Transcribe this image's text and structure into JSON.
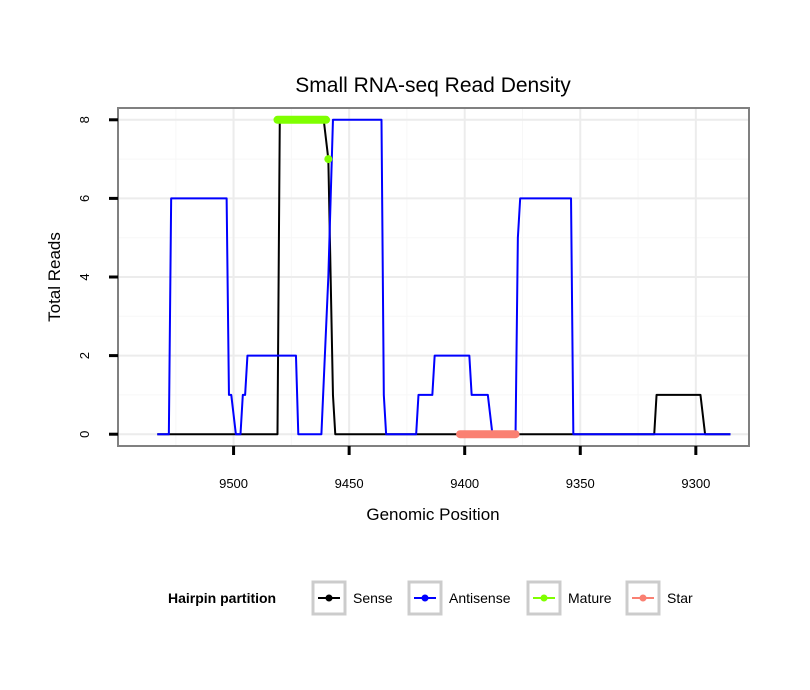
{
  "chart_data": {
    "type": "line",
    "title": "Small RNA-seq Read Density",
    "xlabel": "Genomic Position",
    "ylabel": "Total Reads",
    "xlim": [
      9550,
      9277
    ],
    "ylim": [
      -0.3,
      8.3
    ],
    "x_reversed": true,
    "grid": true,
    "x_ticks": [
      9500,
      9450,
      9400,
      9350,
      9300
    ],
    "x_tick_labels": [
      "9500",
      "9450",
      "9400",
      "9350",
      "9300"
    ],
    "y_ticks": [
      0,
      2,
      4,
      6,
      8
    ],
    "y_tick_labels": [
      "0",
      "2",
      "4",
      "6",
      "8"
    ],
    "legend": {
      "title": "Hairpin partition",
      "position": "bottom",
      "entries": [
        "Sense",
        "Antisense",
        "Mature",
        "Star"
      ]
    },
    "series": [
      {
        "name": "Sense",
        "color": "#000000",
        "style": "line",
        "points": [
          [
            9533,
            0
          ],
          [
            9481,
            0
          ],
          [
            9480,
            8
          ],
          [
            9461,
            8
          ],
          [
            9459,
            7
          ],
          [
            9458,
            4
          ],
          [
            9457,
            1
          ],
          [
            9456,
            0
          ],
          [
            9318,
            0
          ],
          [
            9317,
            1
          ],
          [
            9298,
            1
          ],
          [
            9296,
            0
          ],
          [
            9285,
            0
          ]
        ]
      },
      {
        "name": "Antisense",
        "color": "#0000ff",
        "style": "line",
        "points": [
          [
            9533,
            0
          ],
          [
            9528,
            0
          ],
          [
            9527,
            6
          ],
          [
            9503,
            6
          ],
          [
            9502,
            1
          ],
          [
            9501,
            1
          ],
          [
            9499,
            0
          ],
          [
            9497,
            0
          ],
          [
            9496,
            1
          ],
          [
            9495,
            1
          ],
          [
            9494,
            2
          ],
          [
            9473,
            2
          ],
          [
            9472,
            0
          ],
          [
            9462,
            0
          ],
          [
            9459,
            4
          ],
          [
            9457,
            8
          ],
          [
            9436,
            8
          ],
          [
            9435,
            1
          ],
          [
            9434,
            0
          ],
          [
            9421,
            0
          ],
          [
            9420,
            1
          ],
          [
            9414,
            1
          ],
          [
            9413,
            2
          ],
          [
            9398,
            2
          ],
          [
            9397,
            1
          ],
          [
            9390,
            1
          ],
          [
            9388,
            0
          ],
          [
            9378,
            0
          ],
          [
            9377,
            5
          ],
          [
            9376,
            6
          ],
          [
            9354,
            6
          ],
          [
            9353,
            0
          ],
          [
            9318,
            0
          ],
          [
            9296,
            0
          ],
          [
            9285,
            0
          ]
        ]
      },
      {
        "name": "Mature",
        "color": "#7fff00",
        "style": "thick",
        "points": [
          [
            9481,
            8
          ],
          [
            9460,
            8
          ]
        ],
        "extra_points": [
          [
            9459,
            7
          ]
        ]
      },
      {
        "name": "Star",
        "color": "#fa8072",
        "style": "thick",
        "points": [
          [
            9402,
            0
          ],
          [
            9378,
            0
          ]
        ]
      }
    ]
  }
}
